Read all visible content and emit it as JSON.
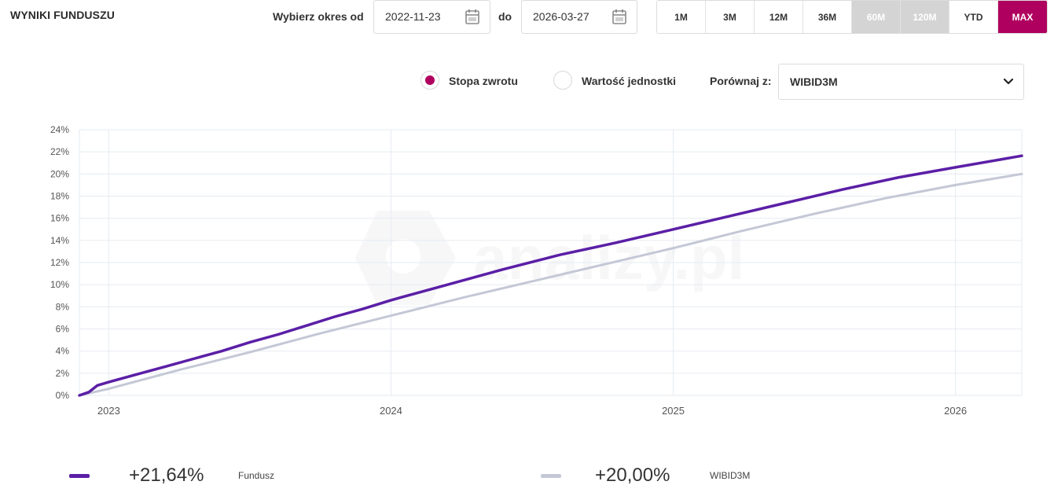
{
  "header": {
    "title": "WYNIKI FUNDUSZU",
    "period_label": "Wybierz okres od",
    "date_from": "2022-11-23",
    "to_label": "do",
    "date_to": "2026-03-27"
  },
  "range_buttons": [
    {
      "label": "1M",
      "state": "normal"
    },
    {
      "label": "3M",
      "state": "normal"
    },
    {
      "label": "12M",
      "state": "normal"
    },
    {
      "label": "36M",
      "state": "normal"
    },
    {
      "label": "60M",
      "state": "disabled"
    },
    {
      "label": "120M",
      "state": "disabled"
    },
    {
      "label": "YTD",
      "state": "normal"
    },
    {
      "label": "MAX",
      "state": "active"
    }
  ],
  "options": {
    "radio_return_label": "Stopa zwrotu",
    "radio_unit_label": "Wartość jednostki",
    "selected": "return",
    "compare_label": "Porównaj z:",
    "compare_value": "WIBID3M"
  },
  "colors": {
    "accent": "#b0005f",
    "fund": "#5b1fa6",
    "benchmark": "#c4c8d6",
    "grid": "#e6ebf1"
  },
  "legend": [
    {
      "value": "+21,64%",
      "name": "Fundusz",
      "color": "#5b1fa6"
    },
    {
      "value": "+20,00%",
      "name": "WIBID3M",
      "color": "#c4c8d6"
    }
  ],
  "watermark": "analizy.pl",
  "chart_data": {
    "type": "line",
    "x_ticks": [
      {
        "x": 2023.0,
        "label": "2023"
      },
      {
        "x": 2024.0,
        "label": "2024"
      },
      {
        "x": 2025.0,
        "label": "2025"
      },
      {
        "x": 2026.0,
        "label": "2026"
      }
    ],
    "xlim": [
      2022.896,
      2026.235
    ],
    "y_ticks": [
      "0%",
      "2%",
      "4%",
      "6%",
      "8%",
      "10%",
      "12%",
      "14%",
      "16%",
      "18%",
      "20%",
      "22%",
      "24%"
    ],
    "ylim": [
      0,
      24
    ],
    "grid": true,
    "series": [
      {
        "name": "Fundusz",
        "color": "#5b1fa6",
        "x": [
          2022.896,
          2022.93,
          2022.96,
          2023.0,
          2023.1,
          2023.2,
          2023.3,
          2023.4,
          2023.5,
          2023.6,
          2023.7,
          2023.8,
          2023.9,
          2024.0,
          2024.2,
          2024.4,
          2024.6,
          2024.8,
          2025.0,
          2025.2,
          2025.4,
          2025.6,
          2025.8,
          2026.0,
          2026.235
        ],
        "values": [
          0.0,
          0.3,
          0.9,
          1.2,
          1.9,
          2.6,
          3.3,
          4.0,
          4.8,
          5.5,
          6.3,
          7.1,
          7.8,
          8.6,
          10.0,
          11.4,
          12.7,
          13.8,
          15.0,
          16.2,
          17.4,
          18.6,
          19.7,
          20.6,
          21.64
        ]
      },
      {
        "name": "WIBID3M",
        "color": "#c4c8d6",
        "x": [
          2022.896,
          2023.0,
          2023.25,
          2023.5,
          2023.75,
          2024.0,
          2024.25,
          2024.5,
          2024.75,
          2025.0,
          2025.25,
          2025.5,
          2025.75,
          2026.0,
          2026.235
        ],
        "values": [
          0.0,
          0.6,
          2.3,
          3.9,
          5.6,
          7.2,
          8.8,
          10.3,
          11.8,
          13.3,
          14.9,
          16.4,
          17.8,
          19.0,
          20.0
        ]
      }
    ]
  }
}
